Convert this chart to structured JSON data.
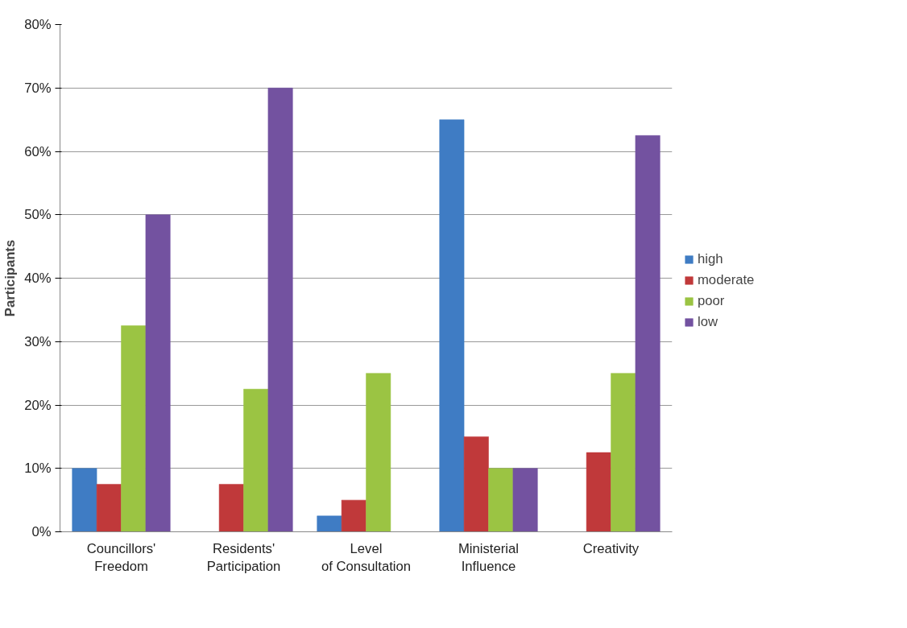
{
  "chart_data": {
    "type": "bar",
    "ylabel": "Participants",
    "categories": [
      "Councillors' Freedom",
      "Residents' Participation",
      "Level of Consultation",
      "Ministerial Influence",
      "Creativity"
    ],
    "series": [
      {
        "name": "high",
        "color": "#3f7cc4",
        "values": [
          10,
          0,
          2.5,
          65,
          0
        ]
      },
      {
        "name": "moderate",
        "color": "#c0393a",
        "values": [
          7.5,
          7.5,
          5,
          15,
          12.5
        ]
      },
      {
        "name": "poor",
        "color": "#9bc443",
        "values": [
          32.5,
          22.5,
          25,
          10,
          25
        ]
      },
      {
        "name": "low",
        "color": "#7352a0",
        "values": [
          50,
          70,
          0,
          10,
          62.5
        ]
      }
    ],
    "ylim": [
      0,
      80
    ],
    "yticks": [
      {
        "value": 0,
        "label": "0%"
      },
      {
        "value": 10,
        "label": "10%"
      },
      {
        "value": 20,
        "label": "20%"
      },
      {
        "value": 30,
        "label": "30%"
      },
      {
        "value": 40,
        "label": "40%"
      },
      {
        "value": 50,
        "label": "50%"
      },
      {
        "value": 60,
        "label": "60%"
      },
      {
        "value": 70,
        "label": "70%"
      },
      {
        "value": 80,
        "label": "80%"
      }
    ],
    "grid": "y",
    "legend": "right"
  }
}
